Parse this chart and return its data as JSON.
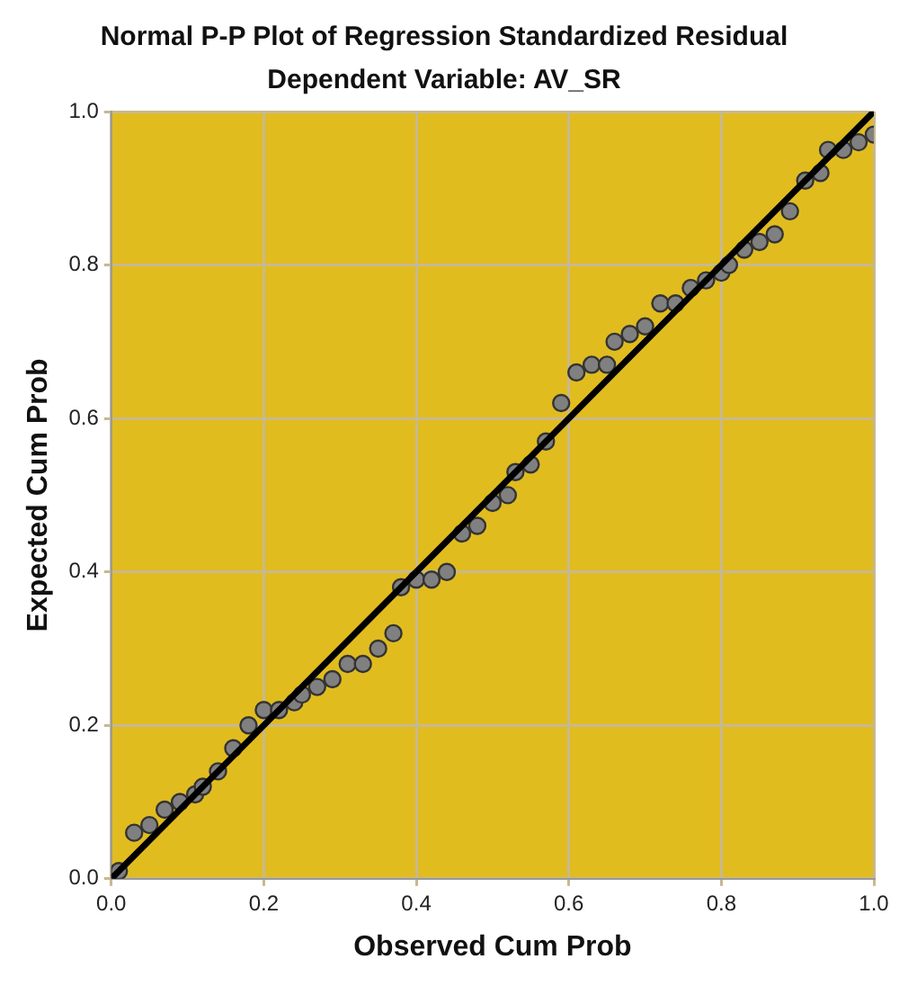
{
  "chart_data": {
    "type": "scatter",
    "title": "Normal P-P Plot of Regression Standardized Residual",
    "subtitle": "Dependent Variable: AV_SR",
    "xlabel": "Observed Cum Prob",
    "ylabel": "Expected Cum Prob",
    "series": [
      {
        "color": "#808080",
        "marker": "circle",
        "x": [
          0.01,
          0.03,
          0.05,
          0.07,
          0.09,
          0.11,
          0.12,
          0.14,
          0.16,
          0.18,
          0.2,
          0.22,
          0.24,
          0.25,
          0.27,
          0.29,
          0.31,
          0.33,
          0.35,
          0.37,
          0.38,
          0.4,
          0.42,
          0.44,
          0.46,
          0.48,
          0.5,
          0.52,
          0.53,
          0.55,
          0.57,
          0.59,
          0.61,
          0.63,
          0.65,
          0.66,
          0.68,
          0.7,
          0.72,
          0.74,
          0.76,
          0.78,
          0.8,
          0.81,
          0.83,
          0.85,
          0.87,
          0.89,
          0.91,
          0.93,
          0.94,
          0.96,
          0.98,
          1.0
        ],
        "values": [
          0.01,
          0.06,
          0.07,
          0.09,
          0.1,
          0.11,
          0.12,
          0.14,
          0.17,
          0.2,
          0.22,
          0.22,
          0.23,
          0.24,
          0.25,
          0.26,
          0.28,
          0.28,
          0.3,
          0.32,
          0.38,
          0.39,
          0.39,
          0.4,
          0.45,
          0.46,
          0.49,
          0.5,
          0.53,
          0.54,
          0.57,
          0.62,
          0.66,
          0.67,
          0.67,
          0.7,
          0.71,
          0.72,
          0.75,
          0.75,
          0.77,
          0.78,
          0.79,
          0.8,
          0.82,
          0.83,
          0.84,
          0.87,
          0.91,
          0.92,
          0.95,
          0.95,
          0.96,
          0.97
        ]
      },
      {
        "type": "line",
        "color": "#000000",
        "marker": "none",
        "line_style": "solid",
        "x": [
          0,
          1
        ],
        "values": [
          0,
          1
        ]
      }
    ],
    "xlim": [
      0,
      1
    ],
    "ylim": [
      0,
      1
    ],
    "xticks": [
      {
        "value": 0,
        "label": "0.0"
      },
      0.2,
      0.4,
      0.6,
      0.8,
      {
        "value": 1,
        "label": "1.0"
      }
    ],
    "yticks": [
      {
        "value": 0,
        "label": "0.0"
      },
      0.2,
      0.4,
      0.6,
      0.8,
      {
        "value": 1,
        "label": "1.0"
      }
    ],
    "grid": true,
    "legend": false
  }
}
